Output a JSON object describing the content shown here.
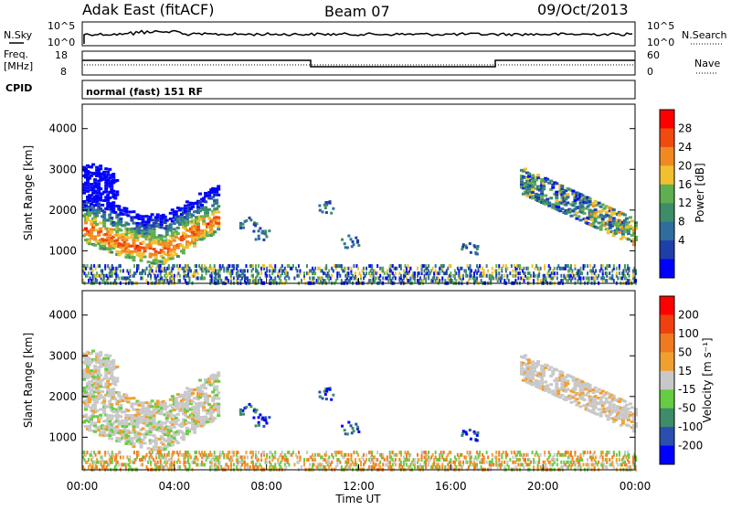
{
  "header": {
    "site": "Adak East (fitACF)",
    "beam": "Beam 07",
    "date": "09/Oct/2013"
  },
  "panels": {
    "nsky_label": "N.Sky",
    "nsky_ticks": [
      "10^5",
      "10^0"
    ],
    "nsearch_label": "N.Search",
    "nsearch_ticks": [
      "10^5",
      "10^0"
    ],
    "freq_label": "Freq.",
    "freq_unit": "[MHz]",
    "freq_ticks": [
      "18",
      "8"
    ],
    "nave_label": "Nave",
    "nave_ticks": [
      "60",
      "0"
    ],
    "cpid_label": "CPID",
    "cpid_text": "normal (fast) 151 RF"
  },
  "colors": {
    "power_scale": [
      "#0000ff",
      "#1f3fa8",
      "#2f6d9e",
      "#3d8c6a",
      "#5fae4f",
      "#f0c030",
      "#f08a20",
      "#f04a10",
      "#ff0000"
    ],
    "velocity_scale": [
      "#0000ff",
      "#2a4fb0",
      "#3d8c6a",
      "#66cc44",
      "#c8c8c8",
      "#f0a030",
      "#f07a20",
      "#f04010",
      "#ff0000"
    ]
  },
  "chart_data": [
    {
      "type": "heatmap",
      "panel": "power",
      "ylabel": "Slant Range [km]",
      "xlabel": "Time UT",
      "x_ticks": [
        "00:00",
        "04:00",
        "08:00",
        "12:00",
        "16:00",
        "20:00",
        "00:00"
      ],
      "y_ticks": [
        "1000",
        "2000",
        "3000",
        "4000"
      ],
      "ylim": [
        200,
        4600
      ],
      "xlim_hours": [
        0,
        24
      ],
      "colorbar_label": "Power [dB]",
      "colorbar_ticks": [
        "28",
        "24",
        "20",
        "16",
        "12",
        "8",
        "4"
      ],
      "features": [
        {
          "t0": 0.0,
          "t1": 5.8,
          "r_center": [
            1500,
            1100,
            1250,
            1700,
            2100
          ],
          "peak": 28
        },
        {
          "t0": 19.0,
          "t1": 24.0,
          "r_center": [
            2700,
            2300,
            1900,
            1500
          ],
          "peak": 20
        },
        {
          "t0": 16.5,
          "t1": 17.8,
          "r_center": [
            1080
          ],
          "peak": 8
        }
      ]
    },
    {
      "type": "heatmap",
      "panel": "velocity",
      "ylabel": "Slant Range [km]",
      "xlabel": "Time UT",
      "x_ticks": [
        "00:00",
        "04:00",
        "08:00",
        "12:00",
        "16:00",
        "20:00",
        "00:00"
      ],
      "y_ticks": [
        "1000",
        "2000",
        "3000",
        "4000"
      ],
      "ylim": [
        200,
        4600
      ],
      "xlim_hours": [
        0,
        24
      ],
      "colorbar_label": "Velocity [m s⁻¹]",
      "colorbar_ticks": [
        "200",
        "100",
        "50",
        "15",
        "-15",
        "-50",
        "-100",
        "-200"
      ]
    }
  ]
}
